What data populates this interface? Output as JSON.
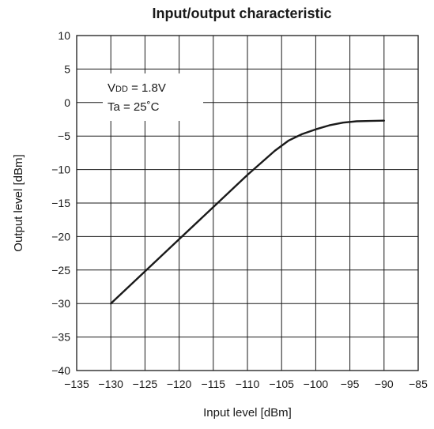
{
  "chart_data": {
    "type": "line",
    "title": "Input/output characteristic",
    "xlabel": "Input level [dBm]",
    "ylabel": "Output level [dBm]",
    "xlim": [
      -135,
      -85
    ],
    "ylim": [
      -40,
      10
    ],
    "xticks": [
      -135,
      -130,
      -125,
      -120,
      -115,
      -110,
      -105,
      -100,
      -95,
      -90,
      -85
    ],
    "yticks": [
      -40,
      -35,
      -30,
      -25,
      -20,
      -15,
      -10,
      -5,
      0,
      5,
      10
    ],
    "xtick_labels": [
      "−135",
      "−130",
      "−125",
      "−120",
      "−115",
      "−110",
      "−105",
      "−100",
      "−95",
      "−90",
      "−85"
    ],
    "ytick_labels": [
      "−40",
      "−35",
      "−30",
      "−25",
      "−20",
      "−15",
      "−10",
      "−5",
      "0",
      "5",
      "10"
    ],
    "grid": true,
    "annotations": {
      "vdd_prefix": "V",
      "vdd_sub": "DD",
      "vdd_value": " = 1.8V",
      "ta": "Ta = 25˚C"
    },
    "series": [
      {
        "x": [
          -130,
          -125,
          -120,
          -115,
          -110,
          -106,
          -104,
          -102,
          -100,
          -98,
          -96,
          -94,
          -92,
          -90
        ],
        "y": [
          -30,
          -25.2,
          -20.4,
          -15.6,
          -10.8,
          -7.2,
          -5.7,
          -4.7,
          -4.0,
          -3.4,
          -3.0,
          -2.8,
          -2.75,
          -2.7
        ]
      }
    ]
  }
}
